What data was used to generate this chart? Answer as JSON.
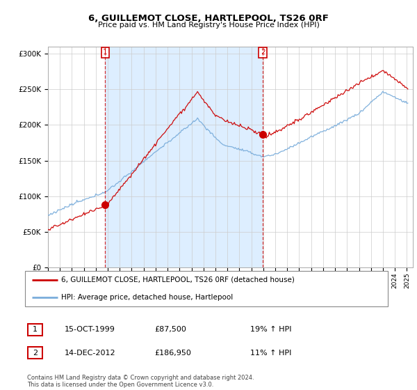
{
  "title": "6, GUILLEMOT CLOSE, HARTLEPOOL, TS26 0RF",
  "subtitle": "Price paid vs. HM Land Registry's House Price Index (HPI)",
  "legend_line1": "6, GUILLEMOT CLOSE, HARTLEPOOL, TS26 0RF (detached house)",
  "legend_line2": "HPI: Average price, detached house, Hartlepool",
  "sale1_label": "1",
  "sale1_date": "15-OCT-1999",
  "sale1_price": "£87,500",
  "sale1_hpi": "19% ↑ HPI",
  "sale2_label": "2",
  "sale2_date": "14-DEC-2012",
  "sale2_price": "£186,950",
  "sale2_hpi": "11% ↑ HPI",
  "footer": "Contains HM Land Registry data © Crown copyright and database right 2024.\nThis data is licensed under the Open Government Licence v3.0.",
  "ylim": [
    0,
    310000
  ],
  "yticks": [
    0,
    50000,
    100000,
    150000,
    200000,
    250000,
    300000
  ],
  "ytick_labels": [
    "£0",
    "£50K",
    "£100K",
    "£150K",
    "£200K",
    "£250K",
    "£300K"
  ],
  "red_color": "#cc0000",
  "blue_color": "#7aaddb",
  "shade_color": "#ddeeff",
  "background_color": "#ffffff",
  "grid_color": "#cccccc",
  "sale1_x_year": 1999.79,
  "sale1_y": 87500,
  "sale2_x_year": 2012.96,
  "sale2_y": 186950,
  "xlim_left": 1995.0,
  "xlim_right": 2025.5
}
